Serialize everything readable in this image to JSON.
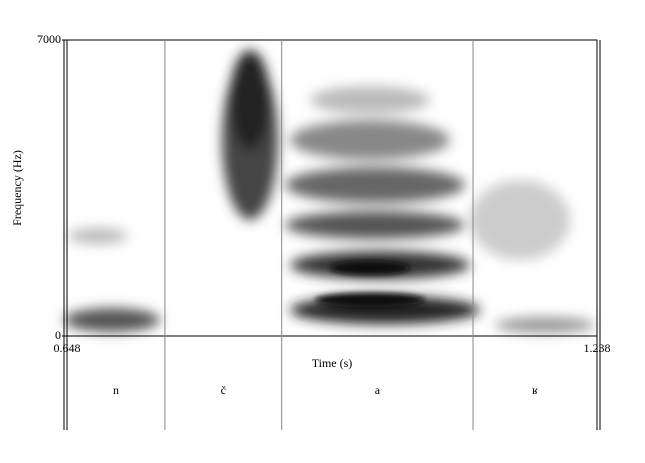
{
  "chart_data": {
    "type": "spectrogram",
    "x_label": "Time (s)",
    "y_label": "Frequency (Hz)",
    "xlim": [
      0.648,
      1.238
    ],
    "xticks": [
      0.648,
      1.238
    ],
    "ylim": [
      0,
      7000
    ],
    "yticks": [
      0,
      7000
    ],
    "tier": {
      "labels": [
        "n",
        "č",
        "a",
        "ʁ"
      ],
      "boundaries": [
        0.757,
        0.887,
        1.1
      ]
    }
  }
}
